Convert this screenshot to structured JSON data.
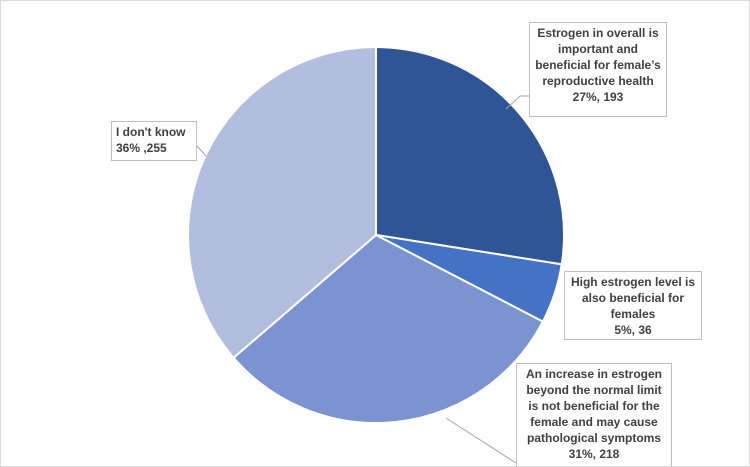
{
  "chart_data": {
    "type": "pie",
    "title": "",
    "slices": [
      {
        "label_lines": [
          "Estrogen in overall is",
          "important and",
          "beneficial for female’s",
          "reproductive health"
        ],
        "value_text": "27%, 193",
        "percent": 27,
        "count": 193,
        "color": "#2f5597"
      },
      {
        "label_lines": [
          "High estrogen level is",
          "also beneficial for",
          "females"
        ],
        "value_text": "5%, 36",
        "percent": 5,
        "count": 36,
        "color": "#4472c4"
      },
      {
        "label_lines": [
          "An increase in estrogen",
          "beyond the normal limit",
          "is not beneficial for the",
          "female and may cause",
          "pathological symptoms"
        ],
        "value_text": "31%, 218",
        "percent": 31,
        "count": 218,
        "color": "#7b93d1"
      },
      {
        "label_lines": [
          "I don't know"
        ],
        "value_text": "36% ,255",
        "percent": 36,
        "count": 255,
        "color": "#b3bedf"
      }
    ],
    "legend": "none",
    "data_labels": "callouts"
  }
}
